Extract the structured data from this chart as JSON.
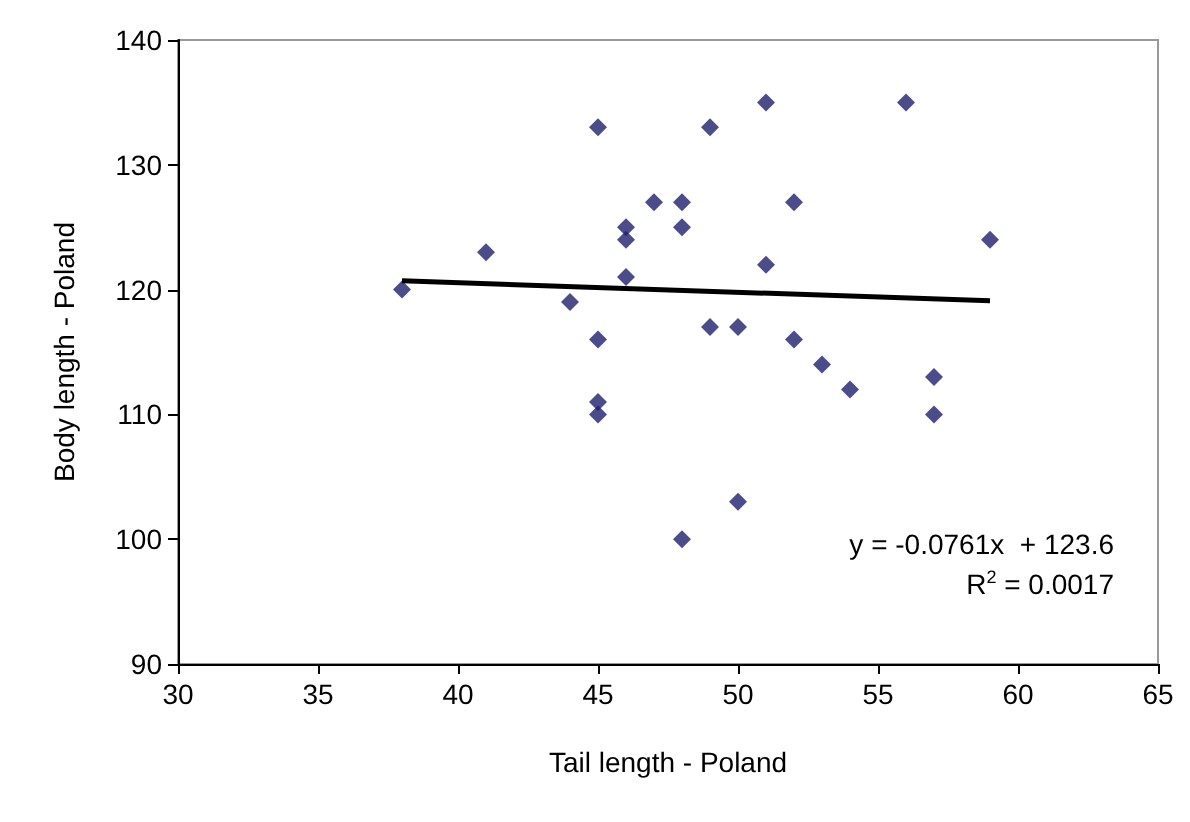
{
  "chart_data": {
    "type": "scatter",
    "xlabel": "Tail length - Poland",
    "ylabel": "Body length - Poland",
    "series": [
      {
        "color": "#1f1f6e",
        "marker": "diamond",
        "x": [
          38,
          41,
          44,
          45,
          45,
          45,
          45,
          46,
          46,
          46,
          47,
          48,
          48,
          48,
          49,
          49,
          50,
          50,
          51,
          51,
          52,
          52,
          53,
          54,
          56,
          57,
          57,
          59
        ],
        "values": [
          120,
          123,
          119,
          133,
          116,
          111,
          110,
          125,
          124,
          121,
          127,
          127,
          125,
          100,
          133,
          117,
          117,
          103,
          135,
          122,
          127,
          116,
          114,
          112,
          135,
          113,
          110,
          124
        ]
      },
      {
        "type": "line",
        "color": "#000000",
        "marker": "none",
        "line_style": "solid",
        "x": [
          38,
          59
        ],
        "values": [
          120.7,
          119.1
        ]
      }
    ],
    "xlim": [
      30,
      65
    ],
    "xticks": [
      30,
      35,
      40,
      45,
      50,
      55,
      60,
      65
    ],
    "ylim": [
      90,
      140
    ],
    "yticks": [
      90,
      100,
      110,
      120,
      130,
      140
    ],
    "grid": false,
    "annotations": [
      "y = -0.0761x  + 123.6",
      "R$^{2}$ = 0.0017"
    ]
  }
}
